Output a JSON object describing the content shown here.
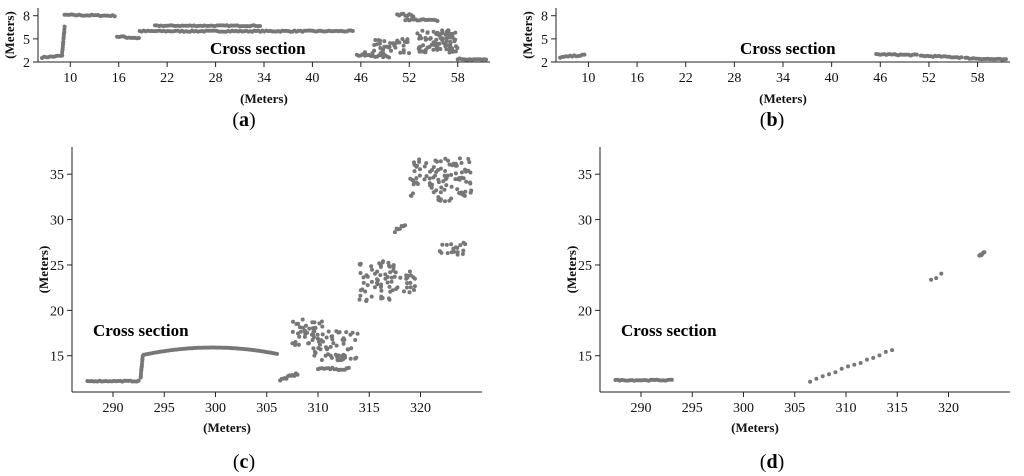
{
  "chart_data": [
    {
      "panel": "a",
      "type": "scatter",
      "caption": "a",
      "annotation": "Cross section",
      "xlabel": "(Meters)",
      "ylabel": "(Meters)",
      "xticks": [
        10,
        16,
        22,
        28,
        34,
        40,
        46,
        52,
        58
      ],
      "yticks": [
        2,
        5,
        8
      ],
      "xlim": [
        6,
        62
      ],
      "ylim": [
        2,
        9
      ],
      "color": "#777777",
      "segments": [
        {
          "kind": "line",
          "x0": 6.5,
          "x1": 9.0,
          "y0": 2.6,
          "y1": 2.8,
          "spread": 0.08
        },
        {
          "kind": "line",
          "x0": 9.0,
          "x1": 9.3,
          "y0": 3.2,
          "y1": 6.5,
          "spread": 0.1
        },
        {
          "kind": "line",
          "x0": 9.3,
          "x1": 15.5,
          "y0": 8.1,
          "y1": 8.0,
          "spread": 0.08
        },
        {
          "kind": "line",
          "x0": 15.8,
          "x1": 18.5,
          "y0": 5.3,
          "y1": 5.1,
          "spread": 0.12
        },
        {
          "kind": "line",
          "x0": 18.6,
          "x1": 45.0,
          "y0": 6.0,
          "y1": 6.0,
          "spread": 0.08
        },
        {
          "kind": "line",
          "x0": 20.5,
          "x1": 33.5,
          "y0": 6.7,
          "y1": 6.7,
          "spread": 0.06
        },
        {
          "kind": "line",
          "x0": 45.5,
          "x1": 49.5,
          "y0": 2.9,
          "y1": 2.7,
          "spread": 0.15
        },
        {
          "kind": "cloud",
          "x0": 46.5,
          "x1": 52.0,
          "y0": 3.0,
          "y1": 5.0,
          "n": 40
        },
        {
          "kind": "line",
          "x0": 50.5,
          "x1": 52.5,
          "y0": 8.2,
          "y1": 8.0,
          "spread": 0.15
        },
        {
          "kind": "line",
          "x0": 51.5,
          "x1": 55.5,
          "y0": 7.5,
          "y1": 7.4,
          "spread": 0.1
        },
        {
          "kind": "cloud",
          "x0": 53.0,
          "x1": 58.0,
          "y0": 3.2,
          "y1": 6.2,
          "n": 90
        },
        {
          "kind": "line",
          "x0": 58.0,
          "x1": 61.5,
          "y0": 2.4,
          "y1": 2.3,
          "spread": 0.08
        }
      ]
    },
    {
      "panel": "b",
      "type": "scatter",
      "caption": "b",
      "annotation": "Cross section",
      "xlabel": "(Meters)",
      "ylabel": "(Meters)",
      "xticks": [
        10,
        16,
        22,
        28,
        34,
        40,
        46,
        52,
        58
      ],
      "yticks": [
        2,
        5,
        8
      ],
      "xlim": [
        6,
        62
      ],
      "ylim": [
        2,
        9
      ],
      "color": "#777777",
      "segments": [
        {
          "kind": "line",
          "x0": 6.5,
          "x1": 9.5,
          "y0": 2.6,
          "y1": 2.9,
          "spread": 0.08
        },
        {
          "kind": "line",
          "x0": 45.5,
          "x1": 50.5,
          "y0": 3.0,
          "y1": 2.9,
          "spread": 0.08
        },
        {
          "kind": "line",
          "x0": 51.0,
          "x1": 56.0,
          "y0": 2.8,
          "y1": 2.6,
          "spread": 0.08
        },
        {
          "kind": "line",
          "x0": 56.5,
          "x1": 61.5,
          "y0": 2.5,
          "y1": 2.3,
          "spread": 0.08
        }
      ]
    },
    {
      "panel": "c",
      "type": "scatter",
      "caption": "c",
      "annotation": "Cross section",
      "xlabel": "(Meters)",
      "ylabel": "(Meters)",
      "xticks": [
        290,
        295,
        300,
        305,
        310,
        315,
        320
      ],
      "yticks": [
        15,
        20,
        25,
        30,
        35
      ],
      "xlim": [
        286,
        326
      ],
      "ylim": [
        11,
        38
      ],
      "color": "#777777",
      "segments": [
        {
          "kind": "line",
          "x0": 287.5,
          "x1": 292.5,
          "y0": 12.2,
          "y1": 12.2,
          "spread": 0.05
        },
        {
          "kind": "line",
          "x0": 292.7,
          "x1": 292.9,
          "y0": 12.6,
          "y1": 15.0,
          "spread": 0.1
        },
        {
          "kind": "arc",
          "x0": 293.0,
          "x1": 306.0,
          "y0": 15.1,
          "y1": 15.2,
          "peak": 15.9
        },
        {
          "kind": "line",
          "x0": 306.3,
          "x1": 308.0,
          "y0": 12.3,
          "y1": 13.0,
          "spread": 0.15
        },
        {
          "kind": "cloud",
          "x0": 307.5,
          "x1": 310.5,
          "y0": 16.0,
          "y1": 19.0,
          "n": 40
        },
        {
          "kind": "cloud",
          "x0": 309.5,
          "x1": 314.0,
          "y0": 14.5,
          "y1": 17.8,
          "n": 60
        },
        {
          "kind": "line",
          "x0": 310.0,
          "x1": 313.0,
          "y0": 13.5,
          "y1": 13.6,
          "spread": 0.15
        },
        {
          "kind": "cloud",
          "x0": 314.0,
          "x1": 317.5,
          "y0": 21.0,
          "y1": 25.5,
          "n": 50
        },
        {
          "kind": "cloud",
          "x0": 316.5,
          "x1": 319.5,
          "y0": 22.0,
          "y1": 24.5,
          "n": 30
        },
        {
          "kind": "line",
          "x0": 317.5,
          "x1": 318.5,
          "y0": 28.8,
          "y1": 29.3,
          "spread": 0.2
        },
        {
          "kind": "cloud",
          "x0": 319.0,
          "x1": 325.0,
          "y0": 32.0,
          "y1": 36.8,
          "n": 100
        },
        {
          "kind": "cloud",
          "x0": 321.5,
          "x1": 324.5,
          "y0": 26.0,
          "y1": 27.5,
          "n": 18
        }
      ]
    },
    {
      "panel": "d",
      "type": "scatter",
      "caption": "d",
      "annotation": "Cross section",
      "xlabel": "(Meters)",
      "ylabel": "(Meters)",
      "xticks": [
        290,
        295,
        300,
        305,
        310,
        315,
        320
      ],
      "yticks": [
        15,
        20,
        25,
        30,
        35
      ],
      "xlim": [
        286,
        326
      ],
      "ylim": [
        11,
        38
      ],
      "color": "#777777",
      "segments": [
        {
          "kind": "line",
          "x0": 287.5,
          "x1": 293.0,
          "y0": 12.3,
          "y1": 12.3,
          "spread": 0.05
        },
        {
          "kind": "line",
          "x0": 306.5,
          "x1": 314.5,
          "y0": 12.2,
          "y1": 15.6,
          "spread": 0.1,
          "n": 14
        },
        {
          "kind": "line",
          "x0": 318.3,
          "x1": 319.3,
          "y0": 23.3,
          "y1": 24.0,
          "spread": 0.1,
          "n": 3
        },
        {
          "kind": "line",
          "x0": 323.0,
          "x1": 323.5,
          "y0": 26.0,
          "y1": 26.4,
          "spread": 0.1,
          "n": 6
        }
      ]
    }
  ]
}
